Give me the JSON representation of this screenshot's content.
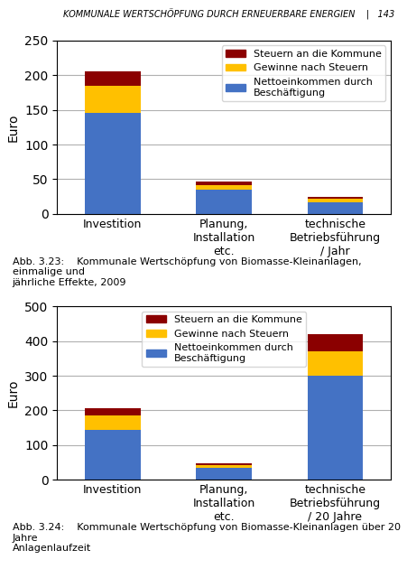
{
  "title": "KOMMUNALE WERTSCHÖPFUNG DURCH ERNEUERBARE ENERGIEN    |   143",
  "chart_data": [
    {
      "type": "bar",
      "stacked": true,
      "grid": true,
      "legend": "upper right",
      "ylabel": "Euro",
      "categories": [
        "Investition",
        "Planung, Installation etc.",
        "technische\nBetriebsführung\n/ Jahr"
      ],
      "ylim": [
        0,
        250
      ],
      "yticks": [
        0,
        50,
        100,
        150,
        200,
        250
      ],
      "series": [
        {
          "name": "Nettoeinkommen durch\nBeschäftigung",
          "color": "#4472C4",
          "values": [
            145,
            35,
            17
          ]
        },
        {
          "name": "Gewinne nach Steuern",
          "color": "#FFC000",
          "values": [
            40,
            7,
            5
          ]
        },
        {
          "name": "Steuern an die Kommune",
          "color": "#8B0000",
          "values": [
            20,
            5,
            3
          ]
        }
      ],
      "annotations": [
        "Abb. 3.23:    Kommunale Wertschöpfung von Biomasse-Kleinanlagen, einmalige und\njährliche Effekte, 2009"
      ]
    },
    {
      "type": "bar",
      "stacked": true,
      "grid": true,
      "legend": "upper center",
      "ylabel": "Euro",
      "categories": [
        "Investition",
        "Planung, Installation etc.",
        "technische\nBetriebsführung\n/ 20 Jahre"
      ],
      "ylim": [
        0,
        500
      ],
      "yticks": [
        0,
        100,
        200,
        300,
        400,
        500
      ],
      "series": [
        {
          "name": "Nettoeinkommen durch\nBeschäftigung",
          "color": "#4472C4",
          "values": [
            145,
            35,
            300
          ]
        },
        {
          "name": "Gewinne nach Steuern",
          "color": "#FFC000",
          "values": [
            40,
            7,
            70
          ]
        },
        {
          "name": "Steuern an die Kommune",
          "color": "#8B0000",
          "values": [
            20,
            5,
            50
          ]
        }
      ],
      "annotations": [
        "Abb. 3.24:    Kommunale Wertschöpfung von Biomasse-Kleinanlagen über 20 Jahre\nAnlagenlaufzeit"
      ]
    }
  ]
}
